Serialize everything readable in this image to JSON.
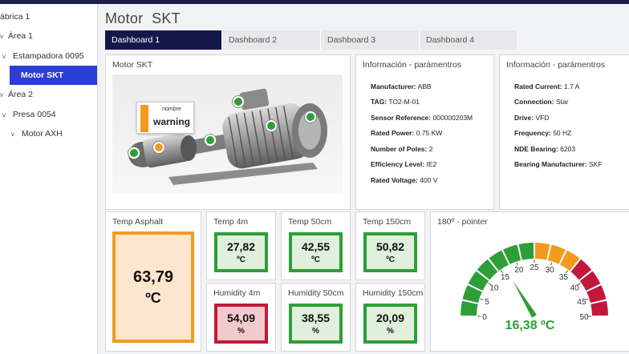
{
  "sidebar": {
    "items": [
      {
        "label": "ábrica 1",
        "chevron": ""
      },
      {
        "label": "Área 1",
        "chevron": "v"
      },
      {
        "label": "Estampadora 0095",
        "chevron": "v"
      },
      {
        "label": "Motor SKT",
        "chevron": ""
      },
      {
        "label": "Área 2",
        "chevron": "v"
      },
      {
        "label": "Presa 0054",
        "chevron": "v"
      },
      {
        "label": "Motor AXH",
        "chevron": "v"
      }
    ]
  },
  "header": {
    "title": "Motor  SKT"
  },
  "tabs": [
    {
      "label": "Dashboard 1",
      "active": true
    },
    {
      "label": "Dashboard 2",
      "active": false
    },
    {
      "label": "Dashboard 3",
      "active": false
    },
    {
      "label": "Dashboard 4",
      "active": false
    }
  ],
  "motor_panel": {
    "title": "Motor SKT",
    "warning_card": {
      "label": "nombre",
      "value": "warning"
    }
  },
  "info_left": {
    "title": "Información - parámentros",
    "rows": [
      {
        "key": "Manufacturer:",
        "value": "ABB"
      },
      {
        "key": "TAG:",
        "value": "TO2-M-01"
      },
      {
        "key": "Sensor Reference:",
        "value": "000000203M"
      },
      {
        "key": "Rated Power:",
        "value": "0.75 KW"
      },
      {
        "key": "Number of Poles:",
        "value": "2"
      },
      {
        "key": "Efficiency Level:",
        "value": "IE2"
      },
      {
        "key": "Rated Voltage:",
        "value": "400 V"
      }
    ]
  },
  "info_right": {
    "title": "Información - parámentros",
    "rows": [
      {
        "key": "Rated Current:",
        "value": "1.7 A"
      },
      {
        "key": "Connection:",
        "value": "Star"
      },
      {
        "key": "Drive:",
        "value": "VFD"
      },
      {
        "key": "Frequency:",
        "value": "50 HZ"
      },
      {
        "key": "NDE Bearing:",
        "value": "6203"
      },
      {
        "key": "Bearing Manufacturer:",
        "value": "SKF"
      }
    ]
  },
  "tiles": {
    "temp_asphalt": {
      "title": "Temp Asphalt",
      "value": "63,79",
      "unit": "ºC"
    },
    "temp_4m": {
      "title": "Temp 4m",
      "value": "27,82",
      "unit": "ºC"
    },
    "temp_50cm": {
      "title": "Temp 50cm",
      "value": "42,55",
      "unit": "ºC"
    },
    "temp_150cm": {
      "title": "Temp 150cm",
      "value": "50,82",
      "unit": "ºC"
    },
    "humidity_4m": {
      "title": "Humidity 4m",
      "value": "54,09",
      "unit": "%"
    },
    "humidity_50cm": {
      "title": "Humidity 50cm",
      "value": "38,55",
      "unit": "%"
    },
    "humidity_150cm": {
      "title": "Humidity 150cm",
      "value": "20,09",
      "unit": "%"
    }
  },
  "gauge": {
    "title": "180º - pointer",
    "value": 16.38,
    "value_text": "16,38 ºC",
    "min": 0,
    "max": 50,
    "ticks": [
      "0",
      "5",
      "10",
      "15",
      "20",
      "25",
      "30",
      "35",
      "40",
      "45",
      "50"
    ],
    "bands": [
      {
        "from": 0,
        "to": 25,
        "color": "#2e9e38"
      },
      {
        "from": 25,
        "to": 35,
        "color": "#f39a1f"
      },
      {
        "from": 35,
        "to": 50,
        "color": "#c2183a"
      }
    ]
  },
  "colors": {
    "green": "#2e9e38",
    "orange": "#f39a1f",
    "red": "#c2183a",
    "selected": "#2b3fd4",
    "tab_active": "#14174a"
  }
}
